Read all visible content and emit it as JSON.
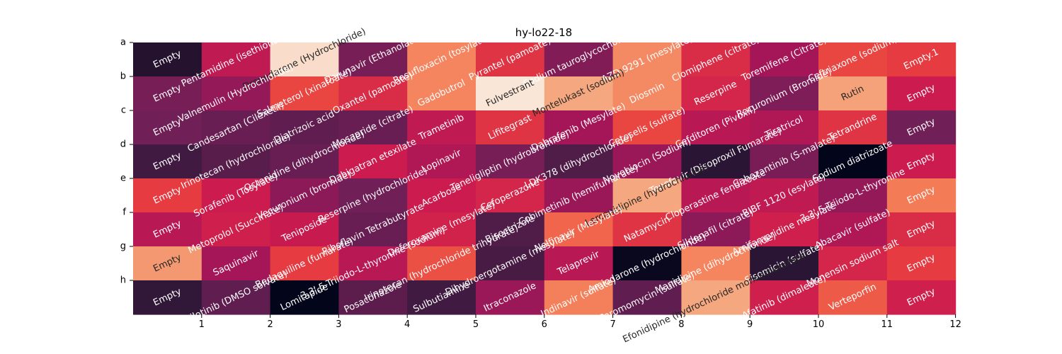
{
  "chart_data": {
    "type": "heatmap",
    "title": "hy-lo22-18",
    "xlabel": "",
    "ylabel": "",
    "row_labels": [
      "a",
      "b",
      "c",
      "d",
      "e",
      "f",
      "g",
      "h"
    ],
    "x_tick_labels": [
      "1",
      "2",
      "3",
      "4",
      "5",
      "6",
      "7",
      "8",
      "9",
      "10",
      "11",
      "12"
    ],
    "x_tick_positions": [
      1,
      2,
      3,
      4,
      5,
      6,
      7,
      8,
      9,
      10,
      11,
      12
    ],
    "colorbar": false,
    "grid": false,
    "cells": [
      [
        {
          "text": "Empty",
          "v": 0.1
        },
        {
          "text": "Pentamidine (isethionate)",
          "v": 0.52
        },
        {
          "text": "Dronedarone (Hydrochloride)",
          "v": 0.97
        },
        {
          "text": "Darunavir (Ethanolate)",
          "v": 0.32
        },
        {
          "text": "Rosufloxacin (tosylate)",
          "v": 0.78
        },
        {
          "text": "Pyrantel (pamoate)",
          "v": 0.62
        },
        {
          "text": "Sodium tauroglycocholate",
          "v": 0.35
        },
        {
          "text": "AZD-9291 (mesylate)",
          "v": 0.79
        },
        {
          "text": "Clomiphene (citrate)",
          "v": 0.6
        },
        {
          "text": "Toremifene (Citrate)",
          "v": 0.45
        },
        {
          "text": "Ceftriaxone (sodium)",
          "v": 0.66
        },
        {
          "text": "Empty.1",
          "v": 0.64
        }
      ],
      [
        {
          "text": "Empty",
          "v": 0.32
        },
        {
          "text": "Valnemulin (Hydrochloride)",
          "v": 0.4
        },
        {
          "text": "Salmeterol (xinafoate)",
          "v": 0.66
        },
        {
          "text": "Oxantel (pamoate)",
          "v": 0.6
        },
        {
          "text": "Gadobutrol",
          "v": 0.78
        },
        {
          "text": "Fulvestrant",
          "v": 0.99
        },
        {
          "text": "Montelukast (sodium)",
          "v": 0.85
        },
        {
          "text": "Diosmin",
          "v": 0.79
        },
        {
          "text": "Reserpine",
          "v": 0.58
        },
        {
          "text": "Rocuronium (Bromide)",
          "v": 0.34
        },
        {
          "text": "Rutin",
          "v": 0.84
        },
        {
          "text": "Empty",
          "v": 0.55
        }
      ],
      [
        {
          "text": "Empty",
          "v": 0.3
        },
        {
          "text": "Candesartan (Cilexetil)",
          "v": 0.28
        },
        {
          "text": "Diatrizoic acid",
          "v": 0.26
        },
        {
          "text": "Mosapride (citrate)",
          "v": 0.28
        },
        {
          "text": "Trametinib",
          "v": 0.52
        },
        {
          "text": "Lifitegrast",
          "v": 0.62
        },
        {
          "text": "Dabrafenib (Mesylate)",
          "v": 0.45
        },
        {
          "text": "Cetoselis (sulfate)",
          "v": 0.66
        },
        {
          "text": "Cefditoren (Pivoxil)",
          "v": 0.5
        },
        {
          "text": "Tiratricol",
          "v": 0.48
        },
        {
          "text": "Tetrandrine",
          "v": 0.62
        },
        {
          "text": "Empty",
          "v": 0.3
        }
      ],
      [
        {
          "text": "Empty",
          "v": 0.18
        },
        {
          "text": "Irinotecan (hydrochloride)",
          "v": 0.24
        },
        {
          "text": "Octenidine (dihydrochloride)",
          "v": 0.28
        },
        {
          "text": "Dabigatran etexilate",
          "v": 0.55
        },
        {
          "text": "Lopinavir",
          "v": 0.48
        },
        {
          "text": "Teneligliptin (hydrobromide)",
          "v": 0.32
        },
        {
          "text": "LDK378 (dihydrochloride)",
          "v": 0.22
        },
        {
          "text": "Novobiocin (Sodium)",
          "v": 0.42
        },
        {
          "text": "Tenofovir (Disoproxil Fumarate)",
          "v": 0.12
        },
        {
          "text": "Cabozantinib (S-malate)",
          "v": 0.33
        },
        {
          "text": "Sodium diatrizoate",
          "v": 0.0
        },
        {
          "text": "Empty",
          "v": 0.55
        }
      ],
      [
        {
          "text": "Empty",
          "v": 0.64
        },
        {
          "text": "Sorafenib (Tosylate)",
          "v": 0.55
        },
        {
          "text": "Vecuronium (bromide)",
          "v": 0.38
        },
        {
          "text": "Reserpine (hydrochloride)",
          "v": 0.3
        },
        {
          "text": "Acarbose",
          "v": 0.55
        },
        {
          "text": "Cefoperazone",
          "v": 0.58
        },
        {
          "text": "Cobimetinib (hemifumarate)",
          "v": 0.42
        },
        {
          "text": "Lercanidipine (hydrochloride)",
          "v": 0.85
        },
        {
          "text": "Cloperastine fendizoate",
          "v": 0.5
        },
        {
          "text": "BIBF 1120 (esylate)",
          "v": 0.52
        },
        {
          "text": "3,3',5-Triiodo-L-thyronine",
          "v": 0.4
        },
        {
          "text": "Empty",
          "v": 0.76
        }
      ],
      [
        {
          "text": "Empty",
          "v": 0.5
        },
        {
          "text": "Metoprolol (Succinate)",
          "v": 0.56
        },
        {
          "text": "Teniposide",
          "v": 0.54
        },
        {
          "text": "Riboflavin Tetrabutyrate",
          "v": 0.28
        },
        {
          "text": "Deferoxamine (mesylate)",
          "v": 0.57
        },
        {
          "text": "Bisoctrizole",
          "v": 0.22
        },
        {
          "text": "Nelfinavir (Mesylate)",
          "v": 0.72
        },
        {
          "text": "Natamycin",
          "v": 0.62
        },
        {
          "text": "Sildenafil (citrate)",
          "v": 0.38
        },
        {
          "text": "Amifampridine mesylate",
          "v": 0.56
        },
        {
          "text": "Abacavir (sulfate)",
          "v": 0.48
        },
        {
          "text": "Empty",
          "v": 0.6
        }
      ],
      [
        {
          "text": "Empty",
          "v": 0.82
        },
        {
          "text": "Saquinavir",
          "v": 0.45
        },
        {
          "text": "Bedaquiline (fumarate)",
          "v": 0.64
        },
        {
          "text": "3,3',5-Triiodo-L-thyronine (sodium)",
          "v": 0.5
        },
        {
          "text": "Irinotecan (hydrochloride trihydrate)",
          "v": 0.68
        },
        {
          "text": "Dihydroergotamine (mesylate)",
          "v": 0.2
        },
        {
          "text": "Telaprevir",
          "v": 0.5
        },
        {
          "text": "Amiodarone (hydrochloride)",
          "v": 0.02
        },
        {
          "text": "Manidipine (dihydrochloride)",
          "v": 0.78
        },
        {
          "text": "Sisomicin (sulfate)",
          "v": 0.12
        },
        {
          "text": "Monensin sodium salt",
          "v": 0.58
        },
        {
          "text": "Empty",
          "v": 0.64
        }
      ],
      [
        {
          "text": "Empty",
          "v": 0.14
        },
        {
          "text": "Nilotinib (DMSO solvate)",
          "v": 0.26
        },
        {
          "text": "Lomitapide",
          "v": 0.0
        },
        {
          "text": "Posaconazole",
          "v": 0.25
        },
        {
          "text": "Sulbutiamine",
          "v": 0.18
        },
        {
          "text": "Itraconazole",
          "v": 0.42
        },
        {
          "text": "Indinavir (sulfate)",
          "v": 0.77
        },
        {
          "text": "Paromomycin (sulfate)",
          "v": 0.26
        },
        {
          "text": "Efonidipine (hydrochloride monoethanolate)",
          "v": 0.85
        },
        {
          "text": "Afatinib (dimaleate)",
          "v": 0.56
        },
        {
          "text": "Verteporfin",
          "v": 0.7
        },
        {
          "text": "Empty",
          "v": 0.56
        }
      ]
    ]
  }
}
